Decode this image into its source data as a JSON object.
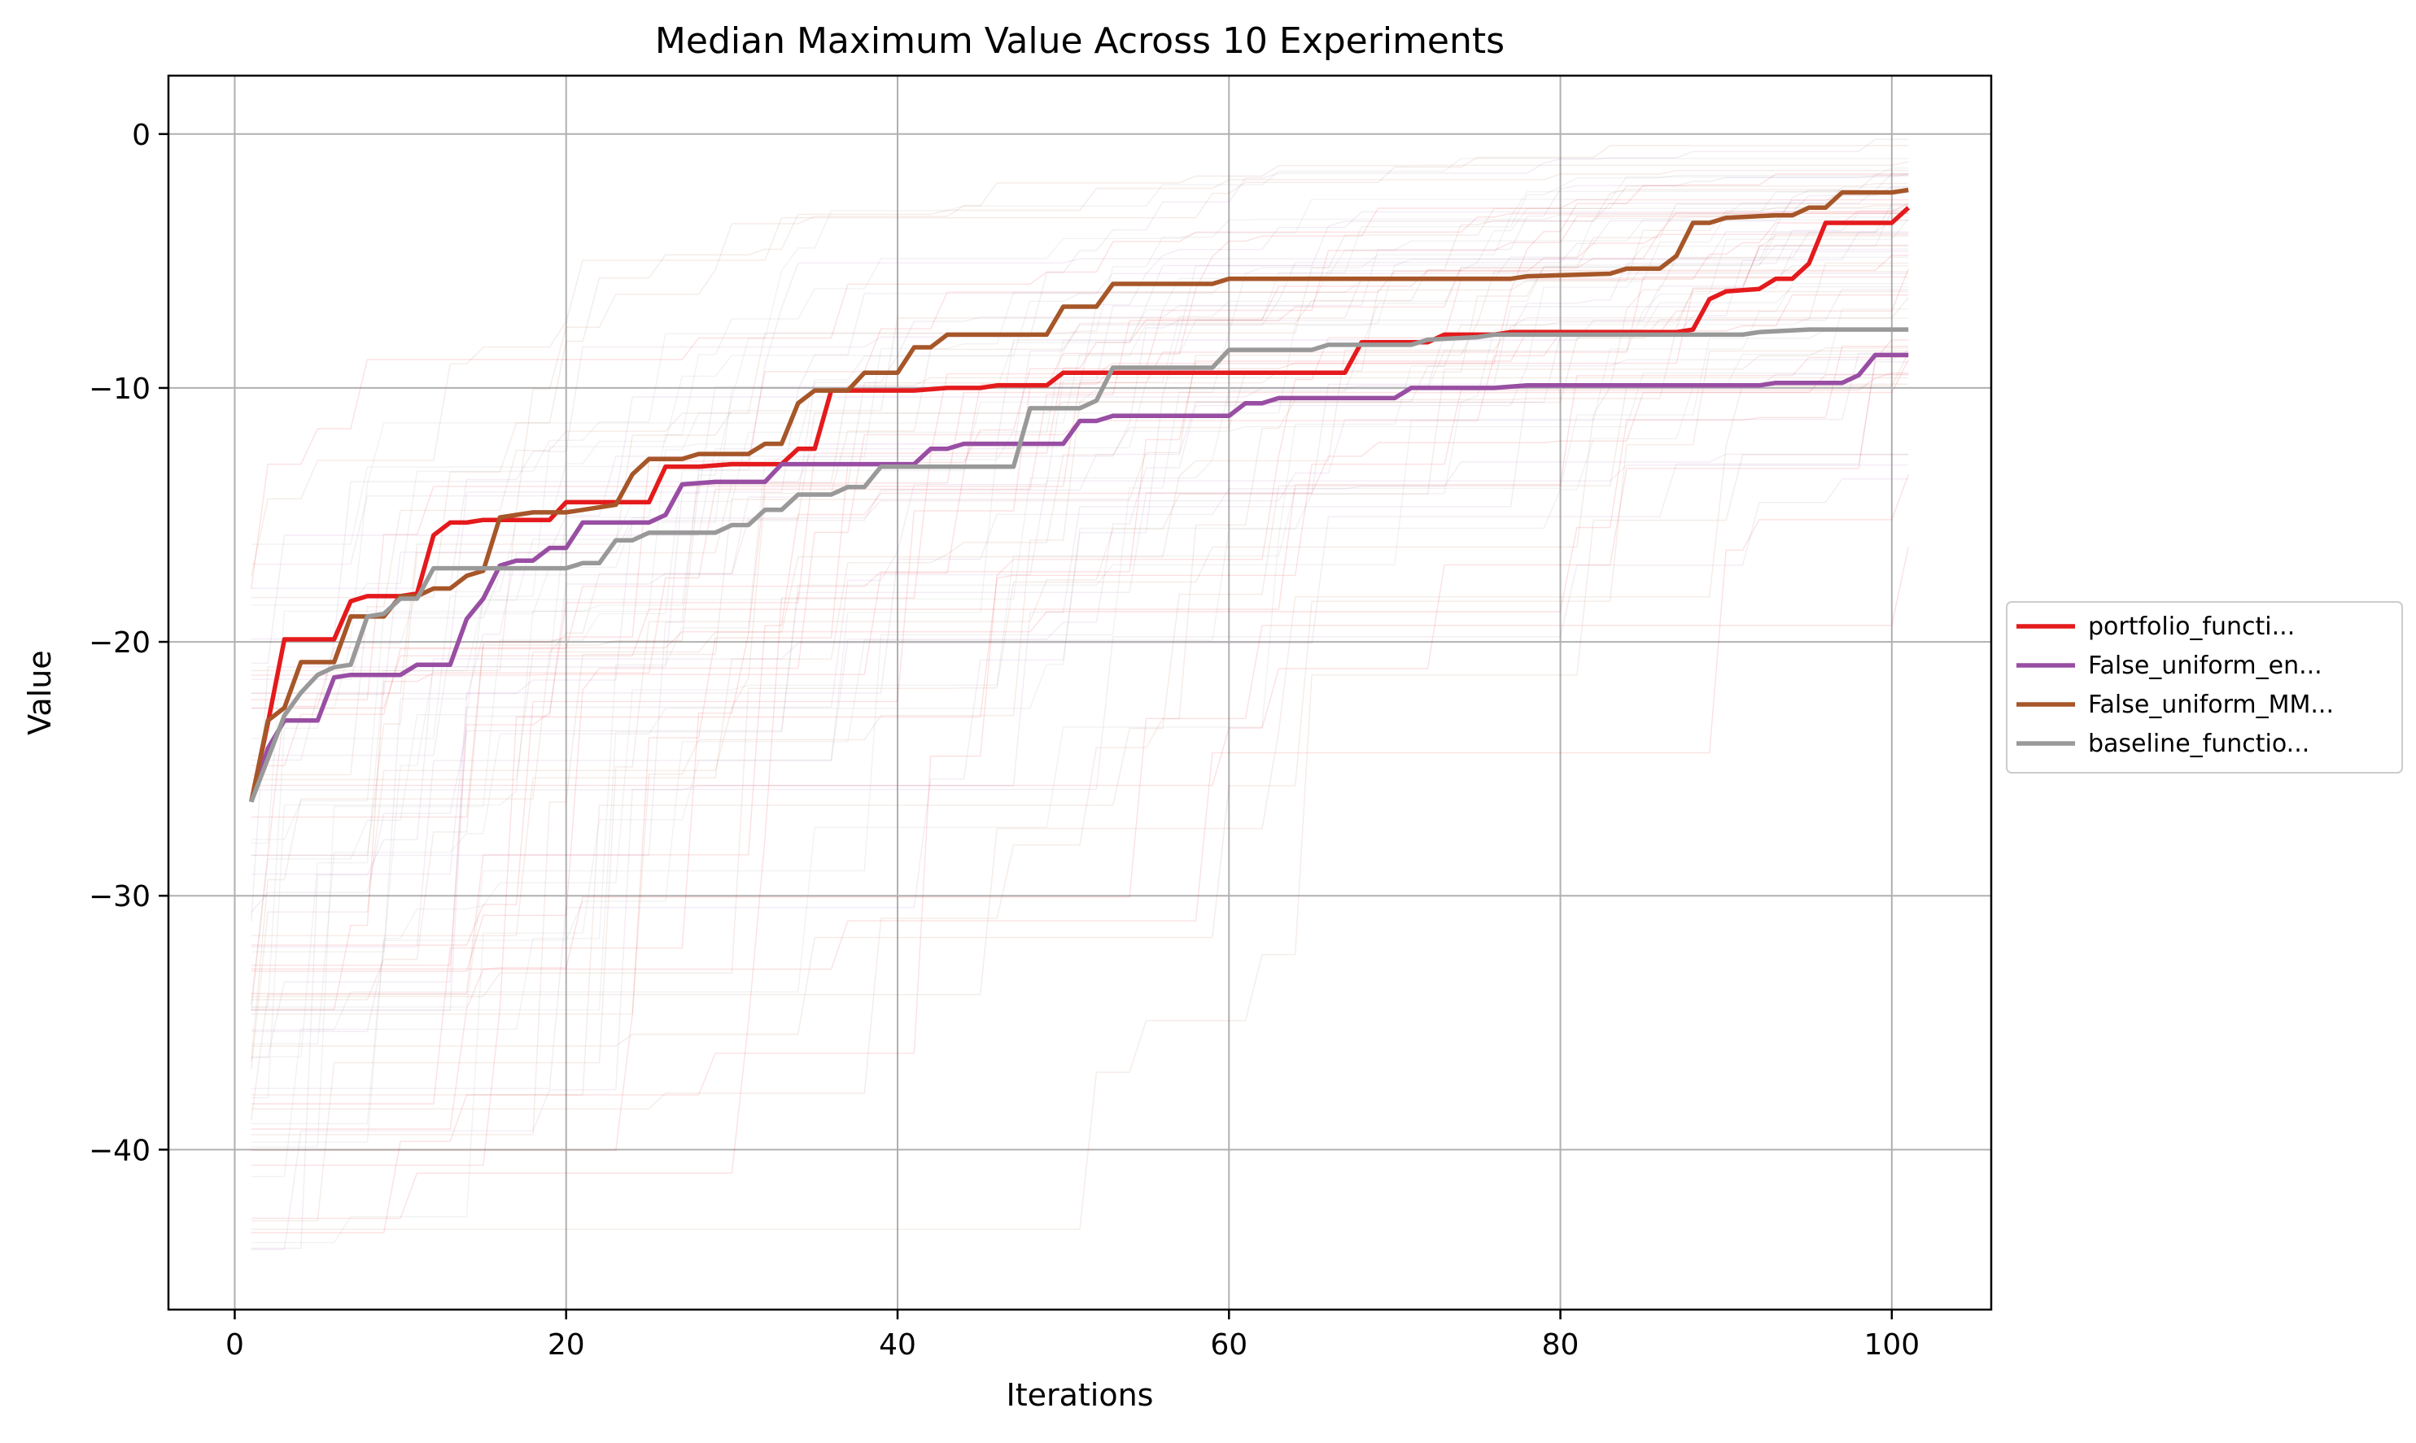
{
  "chart_data": {
    "type": "line",
    "title": "Median Maximum Value Across 10 Experiments",
    "xlabel": "Iterations",
    "ylabel": "Value",
    "xlim": [
      -4,
      106
    ],
    "ylim": [
      -46.3,
      2.3
    ],
    "xticks": [
      0,
      20,
      40,
      60,
      80,
      100
    ],
    "yticks": [
      0,
      -10,
      -20,
      -30,
      -40
    ],
    "xtick_labels": [
      "0",
      "20",
      "40",
      "60",
      "80",
      "100"
    ],
    "ytick_labels": [
      "0",
      "−10",
      "−20",
      "−30",
      "−40"
    ],
    "grid": true,
    "legend_position": "right, outside plot",
    "series": [
      {
        "name": "portfolio_functi...",
        "color": "#e41a1c",
        "points": [
          [
            1,
            -26.3
          ],
          [
            2,
            -23.2
          ],
          [
            3,
            -19.9
          ],
          [
            6,
            -19.9
          ],
          [
            7,
            -18.4
          ],
          [
            8,
            -18.2
          ],
          [
            10,
            -18.2
          ],
          [
            11,
            -18.1
          ],
          [
            12,
            -15.8
          ],
          [
            13,
            -15.3
          ],
          [
            14,
            -15.3
          ],
          [
            15,
            -15.2
          ],
          [
            17,
            -15.2
          ],
          [
            19,
            -15.2
          ],
          [
            20,
            -14.5
          ],
          [
            22,
            -14.5
          ],
          [
            24,
            -14.5
          ],
          [
            25,
            -14.5
          ],
          [
            26,
            -13.1
          ],
          [
            28,
            -13.1
          ],
          [
            30,
            -13.0
          ],
          [
            33,
            -13.0
          ],
          [
            34,
            -12.4
          ],
          [
            35,
            -12.4
          ],
          [
            36,
            -10.1
          ],
          [
            38,
            -10.1
          ],
          [
            41,
            -10.1
          ],
          [
            43,
            -10.0
          ],
          [
            45,
            -10.0
          ],
          [
            46,
            -9.9
          ],
          [
            49,
            -9.9
          ],
          [
            50,
            -9.4
          ],
          [
            58,
            -9.4
          ],
          [
            67,
            -9.4
          ],
          [
            68,
            -8.2
          ],
          [
            72,
            -8.2
          ],
          [
            73,
            -7.9
          ],
          [
            76,
            -7.9
          ],
          [
            77,
            -7.8
          ],
          [
            87,
            -7.8
          ],
          [
            88,
            -7.7
          ],
          [
            89,
            -6.5
          ],
          [
            90,
            -6.2
          ],
          [
            92,
            -6.1
          ],
          [
            93,
            -5.7
          ],
          [
            94,
            -5.7
          ],
          [
            95,
            -5.1
          ],
          [
            96,
            -3.5
          ],
          [
            100,
            -3.5
          ],
          [
            101,
            -2.9
          ]
        ]
      },
      {
        "name": "False_uniform_en...",
        "color": "#984ea3",
        "points": [
          [
            1,
            -26.3
          ],
          [
            2,
            -24.2
          ],
          [
            3,
            -23.1
          ],
          [
            5,
            -23.1
          ],
          [
            6,
            -21.4
          ],
          [
            7,
            -21.3
          ],
          [
            10,
            -21.3
          ],
          [
            11,
            -20.9
          ],
          [
            13,
            -20.9
          ],
          [
            14,
            -19.1
          ],
          [
            15,
            -18.3
          ],
          [
            16,
            -17.0
          ],
          [
            17,
            -16.8
          ],
          [
            18,
            -16.8
          ],
          [
            19,
            -16.3
          ],
          [
            20,
            -16.3
          ],
          [
            21,
            -15.3
          ],
          [
            25,
            -15.3
          ],
          [
            26,
            -15.0
          ],
          [
            27,
            -13.8
          ],
          [
            29,
            -13.7
          ],
          [
            32,
            -13.7
          ],
          [
            33,
            -13.0
          ],
          [
            41,
            -13.0
          ],
          [
            42,
            -12.4
          ],
          [
            43,
            -12.4
          ],
          [
            44,
            -12.2
          ],
          [
            45,
            -12.2
          ],
          [
            47,
            -12.2
          ],
          [
            50,
            -12.2
          ],
          [
            51,
            -11.3
          ],
          [
            52,
            -11.3
          ],
          [
            53,
            -11.1
          ],
          [
            60,
            -11.1
          ],
          [
            61,
            -10.6
          ],
          [
            62,
            -10.6
          ],
          [
            63,
            -10.4
          ],
          [
            70,
            -10.4
          ],
          [
            71,
            -10.0
          ],
          [
            76,
            -10.0
          ],
          [
            78,
            -9.9
          ],
          [
            92,
            -9.9
          ],
          [
            93,
            -9.8
          ],
          [
            96,
            -9.8
          ],
          [
            97,
            -9.8
          ],
          [
            98,
            -9.5
          ],
          [
            99,
            -8.7
          ],
          [
            101,
            -8.7
          ]
        ]
      },
      {
        "name": "False_uniform_MM...",
        "color": "#a65628",
        "points": [
          [
            1,
            -26.3
          ],
          [
            2,
            -23.1
          ],
          [
            3,
            -22.6
          ],
          [
            4,
            -20.8
          ],
          [
            6,
            -20.8
          ],
          [
            7,
            -19.0
          ],
          [
            9,
            -19.0
          ],
          [
            10,
            -18.2
          ],
          [
            11,
            -18.2
          ],
          [
            12,
            -17.9
          ],
          [
            13,
            -17.9
          ],
          [
            14,
            -17.4
          ],
          [
            15,
            -17.2
          ],
          [
            16,
            -15.1
          ],
          [
            17,
            -15.0
          ],
          [
            18,
            -14.9
          ],
          [
            20,
            -14.9
          ],
          [
            21,
            -14.8
          ],
          [
            23,
            -14.6
          ],
          [
            24,
            -13.4
          ],
          [
            25,
            -12.8
          ],
          [
            27,
            -12.8
          ],
          [
            28,
            -12.6
          ],
          [
            31,
            -12.6
          ],
          [
            32,
            -12.2
          ],
          [
            33,
            -12.2
          ],
          [
            34,
            -10.6
          ],
          [
            35,
            -10.1
          ],
          [
            37,
            -10.1
          ],
          [
            38,
            -9.4
          ],
          [
            40,
            -9.4
          ],
          [
            41,
            -8.4
          ],
          [
            42,
            -8.4
          ],
          [
            43,
            -7.9
          ],
          [
            49,
            -7.9
          ],
          [
            50,
            -6.8
          ],
          [
            52,
            -6.8
          ],
          [
            53,
            -5.9
          ],
          [
            59,
            -5.9
          ],
          [
            60,
            -5.7
          ],
          [
            77,
            -5.7
          ],
          [
            78,
            -5.6
          ],
          [
            83,
            -5.5
          ],
          [
            84,
            -5.3
          ],
          [
            86,
            -5.3
          ],
          [
            87,
            -4.8
          ],
          [
            88,
            -3.5
          ],
          [
            89,
            -3.5
          ],
          [
            90,
            -3.3
          ],
          [
            93,
            -3.2
          ],
          [
            94,
            -3.2
          ],
          [
            95,
            -2.9
          ],
          [
            96,
            -2.9
          ],
          [
            97,
            -2.3
          ],
          [
            100,
            -2.3
          ],
          [
            101,
            -2.2
          ]
        ]
      },
      {
        "name": "baseline_functio...",
        "color": "#999999",
        "points": [
          [
            1,
            -26.3
          ],
          [
            2,
            -24.6
          ],
          [
            3,
            -22.9
          ],
          [
            4,
            -22.0
          ],
          [
            5,
            -21.3
          ],
          [
            6,
            -21.0
          ],
          [
            7,
            -20.9
          ],
          [
            8,
            -19.0
          ],
          [
            9,
            -18.9
          ],
          [
            10,
            -18.3
          ],
          [
            11,
            -18.3
          ],
          [
            12,
            -17.1
          ],
          [
            20,
            -17.1
          ],
          [
            21,
            -16.9
          ],
          [
            22,
            -16.9
          ],
          [
            23,
            -16.0
          ],
          [
            24,
            -16.0
          ],
          [
            25,
            -15.7
          ],
          [
            29,
            -15.7
          ],
          [
            30,
            -15.4
          ],
          [
            31,
            -15.4
          ],
          [
            32,
            -14.8
          ],
          [
            33,
            -14.8
          ],
          [
            34,
            -14.2
          ],
          [
            36,
            -14.2
          ],
          [
            37,
            -13.9
          ],
          [
            38,
            -13.9
          ],
          [
            39,
            -13.1
          ],
          [
            47,
            -13.1
          ],
          [
            48,
            -10.8
          ],
          [
            51,
            -10.8
          ],
          [
            52,
            -10.5
          ],
          [
            53,
            -9.2
          ],
          [
            59,
            -9.2
          ],
          [
            60,
            -8.5
          ],
          [
            65,
            -8.5
          ],
          [
            66,
            -8.3
          ],
          [
            71,
            -8.3
          ],
          [
            72,
            -8.1
          ],
          [
            75,
            -8.0
          ],
          [
            76,
            -7.9
          ],
          [
            91,
            -7.9
          ],
          [
            92,
            -7.8
          ],
          [
            95,
            -7.7
          ],
          [
            101,
            -7.7
          ]
        ]
      }
    ]
  }
}
